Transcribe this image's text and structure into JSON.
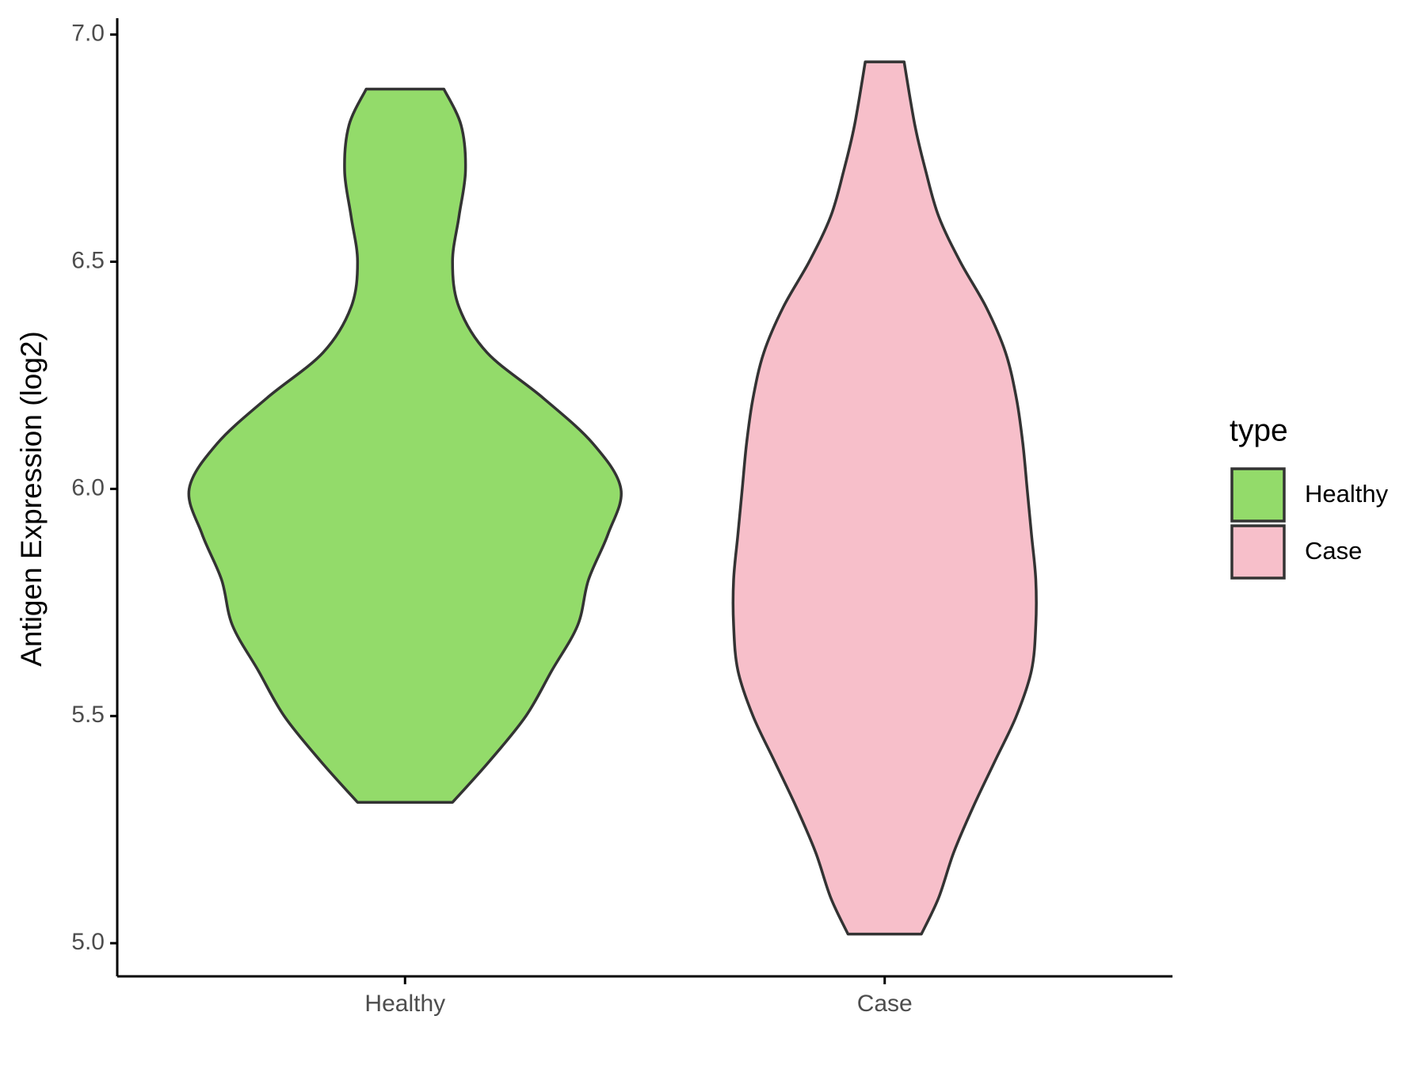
{
  "chart_data": {
    "type": "violin",
    "y_label": "Antigen Expression (log2)",
    "categories": [
      "Healthy",
      "Case"
    ],
    "series": [
      {
        "name": "Healthy",
        "color": "#93db6a",
        "y": [
          6.88,
          6.8,
          6.7,
          6.6,
          6.5,
          6.4,
          6.3,
          6.2,
          6.1,
          6.0,
          5.9,
          5.8,
          5.7,
          5.6,
          5.5,
          5.4,
          5.31
        ],
        "density": [
          0.18,
          0.26,
          0.28,
          0.25,
          0.22,
          0.25,
          0.38,
          0.64,
          0.87,
          1.0,
          0.94,
          0.85,
          0.8,
          0.68,
          0.56,
          0.39,
          0.22
        ]
      },
      {
        "name": "Case",
        "color": "#f7bfca",
        "y": [
          6.94,
          6.8,
          6.7,
          6.6,
          6.5,
          6.4,
          6.3,
          6.2,
          6.1,
          6.0,
          5.9,
          5.8,
          5.7,
          5.6,
          5.5,
          5.4,
          5.3,
          5.2,
          5.1,
          5.02
        ],
        "density": [
          0.09,
          0.14,
          0.19,
          0.25,
          0.35,
          0.47,
          0.56,
          0.61,
          0.64,
          0.66,
          0.68,
          0.7,
          0.7,
          0.68,
          0.61,
          0.51,
          0.41,
          0.32,
          0.25,
          0.17
        ]
      }
    ],
    "ylim": [
      4.927,
      7.036
    ],
    "yticks": [
      {
        "value": 5,
        "label": "5.0"
      },
      {
        "value": 5.5,
        "label": "5.5"
      },
      {
        "value": 6,
        "label": "6.0"
      },
      {
        "value": 6.5,
        "label": "6.5"
      },
      {
        "value": 7,
        "label": "7.0"
      }
    ],
    "legend_title": "type",
    "legend_position": "right"
  }
}
